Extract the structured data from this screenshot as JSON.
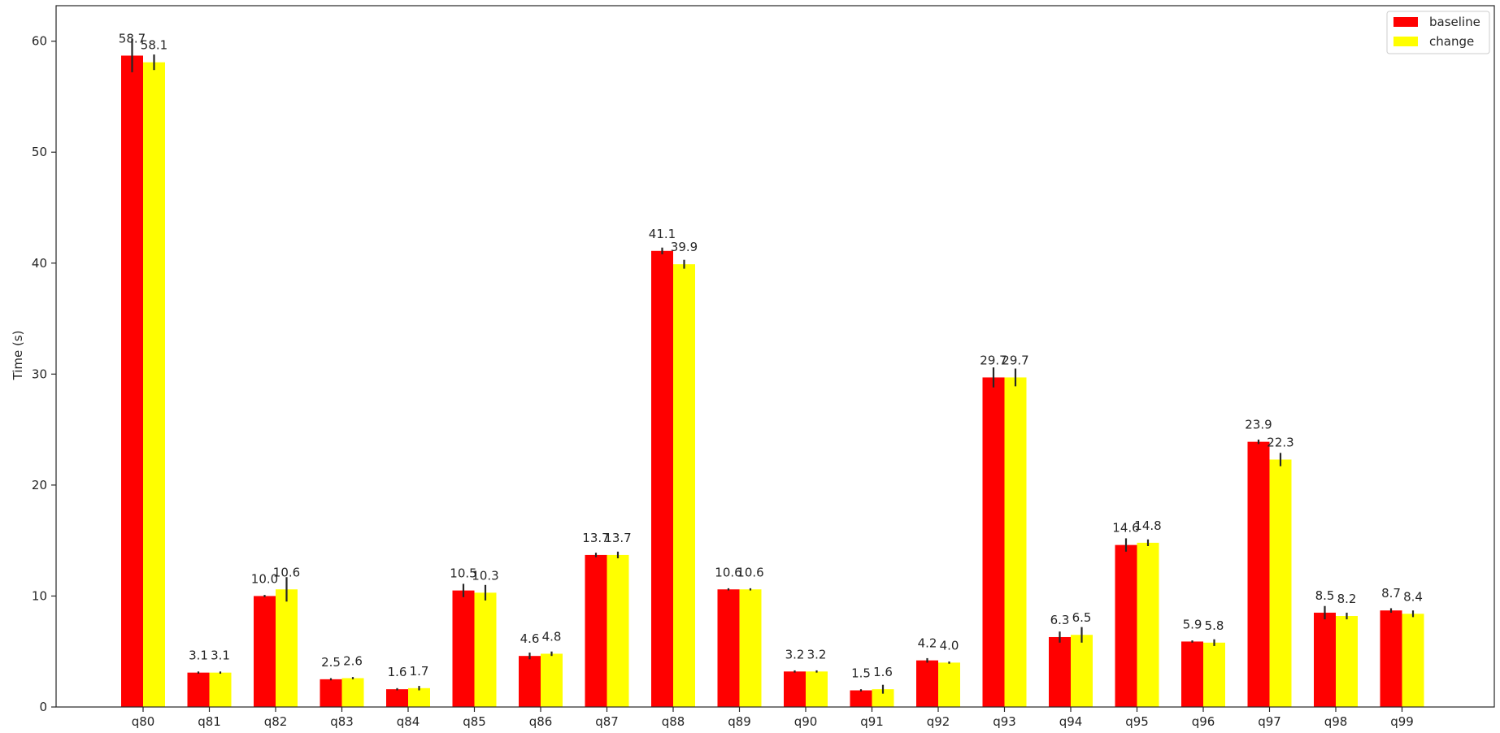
{
  "chart_data": {
    "type": "bar",
    "ylabel": "Time (s)",
    "xlabel": "",
    "title": "",
    "ylim": [
      0,
      63.2
    ],
    "yticks": [
      0,
      10,
      20,
      30,
      40,
      50,
      60
    ],
    "grid": false,
    "legend_position": "top-right",
    "categories": [
      "q80",
      "q81",
      "q82",
      "q83",
      "q84",
      "q85",
      "q86",
      "q87",
      "q88",
      "q89",
      "q90",
      "q91",
      "q92",
      "q93",
      "q94",
      "q95",
      "q96",
      "q97",
      "q98",
      "q99"
    ],
    "series": [
      {
        "name": "baseline",
        "color": "#ff0000",
        "values": [
          58.7,
          3.1,
          10.0,
          2.5,
          1.6,
          10.5,
          4.6,
          13.7,
          41.1,
          10.6,
          3.2,
          1.5,
          4.2,
          29.7,
          6.3,
          14.6,
          5.9,
          23.9,
          8.5,
          8.7
        ],
        "labels": [
          "58.7",
          "3.1",
          "10.0",
          "2.5",
          "1.6",
          "10.5",
          "4.6",
          "13.7",
          "41.1",
          "10.6",
          "3.2",
          "1.5",
          "4.2",
          "29.7",
          "6.3",
          "14.6",
          "5.9",
          "23.9",
          "8.5",
          "8.7"
        ],
        "errors": [
          1.5,
          0.1,
          0.1,
          0.1,
          0.1,
          0.6,
          0.3,
          0.2,
          0.3,
          0.1,
          0.1,
          0.1,
          0.2,
          0.9,
          0.5,
          0.6,
          0.1,
          0.2,
          0.6,
          0.2
        ]
      },
      {
        "name": "change",
        "color": "#ffff00",
        "values": [
          58.1,
          3.1,
          10.6,
          2.6,
          1.7,
          10.3,
          4.8,
          13.7,
          39.9,
          10.6,
          3.2,
          1.6,
          4.0,
          29.7,
          6.5,
          14.8,
          5.8,
          22.3,
          8.2,
          8.4
        ],
        "labels": [
          "58.1",
          "3.1",
          "10.6",
          "2.6",
          "1.7",
          "10.3",
          "4.8",
          "13.7",
          "39.9",
          "10.6",
          "3.2",
          "1.6",
          "4.0",
          "29.7",
          "6.5",
          "14.8",
          "5.8",
          "22.3",
          "8.2",
          "8.4"
        ],
        "errors": [
          0.7,
          0.1,
          1.1,
          0.1,
          0.2,
          0.7,
          0.2,
          0.3,
          0.4,
          0.1,
          0.1,
          0.4,
          0.1,
          0.8,
          0.7,
          0.3,
          0.3,
          0.6,
          0.3,
          0.3
        ]
      }
    ]
  }
}
